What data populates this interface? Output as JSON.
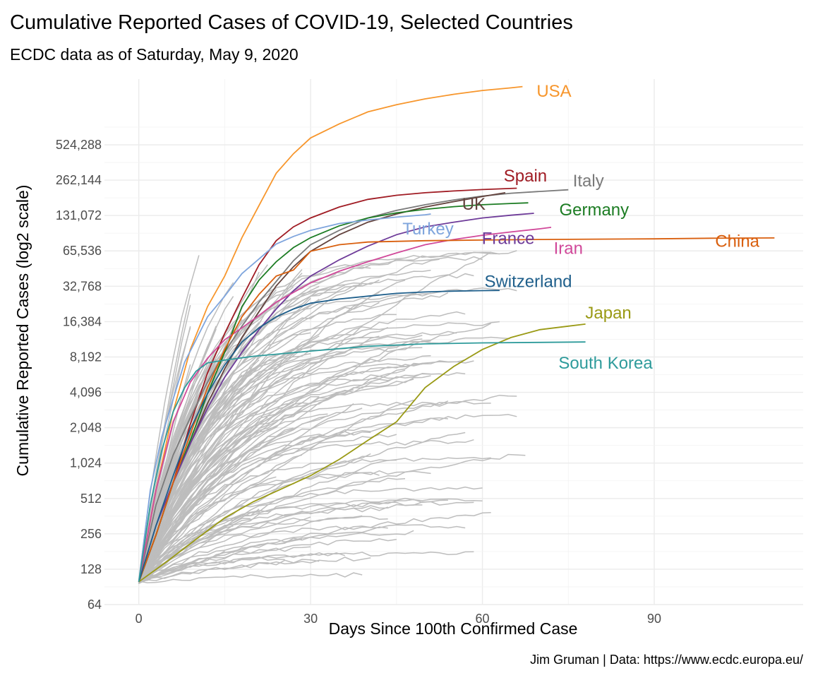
{
  "chart_data": {
    "type": "line",
    "title": "Cumulative Reported Cases of COVID-19, Selected Countries",
    "subtitle": "ECDC data as of Saturday, May  9, 2020",
    "xlabel": "Days Since 100th Confirmed Case",
    "ylabel": "Cumulative Reported Cases (log2 scale)",
    "caption": "Jim Gruman | Data: https://www.ecdc.europa.eu/",
    "y_scale": "log2",
    "xlim": [
      -6,
      116
    ],
    "ylim": [
      64,
      1900000
    ],
    "x_ticks": [
      0,
      30,
      60,
      90
    ],
    "x_tick_labels": [
      "0",
      "30",
      "60",
      "90"
    ],
    "y_ticks": [
      64,
      128,
      256,
      512,
      1024,
      2048,
      4096,
      8192,
      16384,
      32768,
      65536,
      131072,
      262144,
      524288
    ],
    "y_tick_labels": [
      "64",
      "128",
      "256",
      "512",
      "1,024",
      "2,048",
      "4,096",
      "8,192",
      "16,384",
      "32,768",
      "65,536",
      "131,072",
      "262,144",
      "524,288"
    ],
    "grid": true,
    "legend": "none",
    "background_series_color": "#bdbdbd",
    "series": [
      {
        "name": "USA",
        "color": "#f7962c",
        "label_x": 72.5,
        "label_y": 1500000,
        "x": [
          0,
          3,
          6,
          9,
          12,
          15,
          18,
          21,
          24,
          27,
          30,
          35,
          40,
          45,
          50,
          55,
          60,
          65,
          67
        ],
        "y": [
          100,
          600,
          2800,
          9500,
          22000,
          40000,
          85000,
          160000,
          300000,
          440000,
          600000,
          790000,
          1000000,
          1150000,
          1290000,
          1410000,
          1520000,
          1600000,
          1640000
        ]
      },
      {
        "name": "Spain",
        "color": "#a01c24",
        "label_x": 67.5,
        "label_y": 285000,
        "x": [
          0,
          3,
          6,
          9,
          12,
          15,
          18,
          21,
          24,
          27,
          30,
          35,
          40,
          45,
          50,
          55,
          60,
          66
        ],
        "y": [
          100,
          250,
          700,
          2200,
          6000,
          13000,
          26000,
          50000,
          80000,
          105000,
          125000,
          155000,
          180000,
          195000,
          205000,
          212000,
          218000,
          224000
        ]
      },
      {
        "name": "Italy",
        "color": "#7a7a7a",
        "label_x": 78.5,
        "label_y": 258000,
        "x": [
          0,
          3,
          6,
          9,
          12,
          15,
          18,
          21,
          24,
          27,
          30,
          35,
          40,
          45,
          50,
          55,
          60,
          65,
          70,
          75
        ],
        "y": [
          100,
          450,
          1200,
          2500,
          5000,
          9000,
          15000,
          24000,
          36000,
          54000,
          74000,
          98000,
          125000,
          145000,
          162000,
          178000,
          192000,
          203000,
          210000,
          217000
        ]
      },
      {
        "name": "UK",
        "color": "#63423d",
        "label_x": 58.5,
        "label_y": 164000,
        "x": [
          0,
          3,
          6,
          9,
          12,
          15,
          18,
          21,
          24,
          27,
          30,
          35,
          40,
          45,
          50,
          55,
          60,
          64
        ],
        "y": [
          100,
          250,
          700,
          1500,
          3300,
          6500,
          12000,
          20000,
          33000,
          48000,
          65000,
          90000,
          115000,
          135000,
          155000,
          172000,
          190000,
          205000
        ]
      },
      {
        "name": "Germany",
        "color": "#1c7c23",
        "label_x": 79.5,
        "label_y": 147000,
        "x": [
          0,
          3,
          6,
          9,
          12,
          15,
          18,
          21,
          24,
          27,
          30,
          35,
          40,
          45,
          50,
          55,
          60,
          65,
          68
        ],
        "y": [
          100,
          250,
          700,
          1600,
          4000,
          9000,
          22000,
          37000,
          53000,
          70000,
          85000,
          107000,
          125000,
          138000,
          148000,
          156000,
          162000,
          166000,
          168000
        ]
      },
      {
        "name": "Turkey",
        "color": "#7fa5dd",
        "label_x": 50.5,
        "label_y": 101000,
        "x": [
          0,
          2,
          4,
          6,
          8,
          10,
          12,
          15,
          18,
          21,
          24,
          27,
          30,
          35,
          40,
          45,
          50,
          51
        ],
        "y": [
          100,
          600,
          1700,
          3600,
          7400,
          11500,
          18000,
          27000,
          42000,
          56000,
          75000,
          87000,
          98000,
          112000,
          120000,
          127000,
          133000,
          135000
        ]
      },
      {
        "name": "France",
        "color": "#6e3b99",
        "label_x": 64.5,
        "label_y": 84000,
        "x": [
          0,
          3,
          6,
          9,
          12,
          15,
          18,
          21,
          24,
          27,
          30,
          35,
          40,
          45,
          50,
          55,
          60,
          65,
          69
        ],
        "y": [
          100,
          300,
          700,
          1500,
          3000,
          5500,
          9000,
          14000,
          21000,
          30000,
          40000,
          55000,
          72000,
          90000,
          105000,
          115000,
          125000,
          132000,
          137000
        ]
      },
      {
        "name": "Iran",
        "color": "#d1499a",
        "label_x": 75,
        "label_y": 69000,
        "x": [
          0,
          3,
          6,
          9,
          12,
          15,
          18,
          21,
          24,
          27,
          30,
          35,
          40,
          45,
          50,
          55,
          60,
          65,
          70,
          72
        ],
        "y": [
          100,
          600,
          2300,
          5000,
          8000,
          11500,
          14500,
          18500,
          24000,
          29000,
          35000,
          44000,
          53000,
          63000,
          74000,
          82000,
          89000,
          95000,
          101000,
          104000
        ]
      },
      {
        "name": "China",
        "color": "#d95f0e",
        "label_x": 104.5,
        "label_y": 79000,
        "x": [
          0,
          3,
          6,
          9,
          12,
          15,
          18,
          21,
          24,
          27,
          30,
          35,
          40,
          50,
          60,
          70,
          80,
          90,
          100,
          111
        ],
        "y": [
          100,
          250,
          700,
          1800,
          4500,
          9500,
          18000,
          28000,
          40000,
          45000,
          65000,
          74000,
          78000,
          80000,
          81000,
          82000,
          82500,
          83000,
          84000,
          84500
        ]
      },
      {
        "name": "Switzerland",
        "color": "#1f5f8b",
        "label_x": 68,
        "label_y": 36000,
        "x": [
          0,
          3,
          6,
          9,
          12,
          15,
          18,
          21,
          24,
          27,
          30,
          35,
          40,
          45,
          50,
          55,
          60,
          63
        ],
        "y": [
          100,
          300,
          800,
          2000,
          4000,
          7000,
          11000,
          14500,
          18000,
          21000,
          23500,
          25500,
          27000,
          28500,
          29300,
          29800,
          30100,
          30200
        ]
      },
      {
        "name": "Japan",
        "color": "#9a9a15",
        "label_x": 82,
        "label_y": 19500,
        "x": [
          0,
          5,
          10,
          15,
          20,
          25,
          30,
          35,
          40,
          45,
          50,
          55,
          60,
          65,
          70,
          75,
          78
        ],
        "y": [
          100,
          150,
          230,
          350,
          480,
          620,
          800,
          1100,
          1600,
          2300,
          4500,
          6800,
          9500,
          12000,
          14000,
          15000,
          15600
        ]
      },
      {
        "name": "South Korea",
        "color": "#2e9b9b",
        "label_x": 81.5,
        "label_y": 7300,
        "x": [
          0,
          2,
          4,
          6,
          8,
          10,
          12,
          15,
          20,
          30,
          40,
          50,
          60,
          70,
          78
        ],
        "y": [
          100,
          450,
          1300,
          2800,
          4500,
          6200,
          7300,
          7700,
          8300,
          9200,
          10100,
          10600,
          10800,
          10900,
          11000
        ]
      }
    ]
  }
}
